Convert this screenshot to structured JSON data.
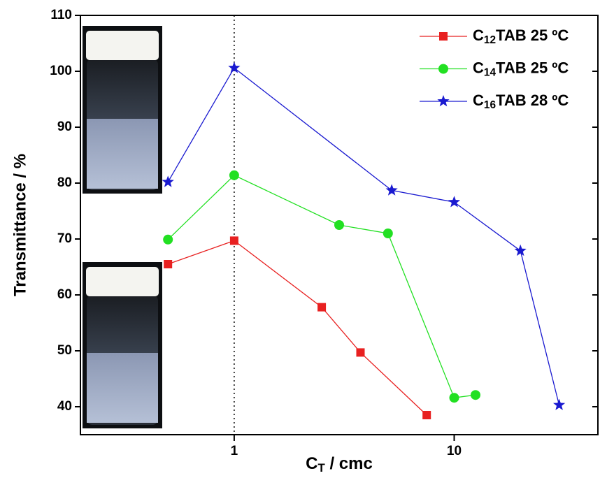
{
  "chart_data": {
    "type": "line",
    "x_label": "CT / cmc",
    "y_label": "Transmittance / %",
    "xscale": "log",
    "xlim": [
      0.2,
      45
    ],
    "xticks": [
      1,
      10
    ],
    "ylim": [
      35,
      110
    ],
    "yticks": [
      40,
      50,
      60,
      70,
      80,
      90,
      100,
      110
    ],
    "vline": 1,
    "legend": "upper right",
    "series": [
      {
        "name": "C12TAB 25 ºC",
        "color": "#e82020",
        "marker": "square",
        "x": [
          0.5,
          1,
          2.5,
          3.75,
          7.5
        ],
        "values": [
          65.5,
          69.7,
          57.8,
          49.7,
          38.5
        ]
      },
      {
        "name": "C14TAB 25 ºC",
        "color": "#22e022",
        "marker": "circle",
        "x": [
          0.5,
          1,
          3,
          5,
          10,
          12.5
        ],
        "values": [
          69.9,
          81.4,
          72.5,
          71.0,
          41.6,
          42.1
        ]
      },
      {
        "name": "C16TAB 28 ºC",
        "color": "#1a1ad0",
        "marker": "star",
        "x": [
          0.5,
          1,
          5.2,
          10,
          20,
          30
        ],
        "values": [
          80.2,
          100.6,
          78.7,
          76.6,
          67.9,
          40.3
        ]
      }
    ]
  }
}
